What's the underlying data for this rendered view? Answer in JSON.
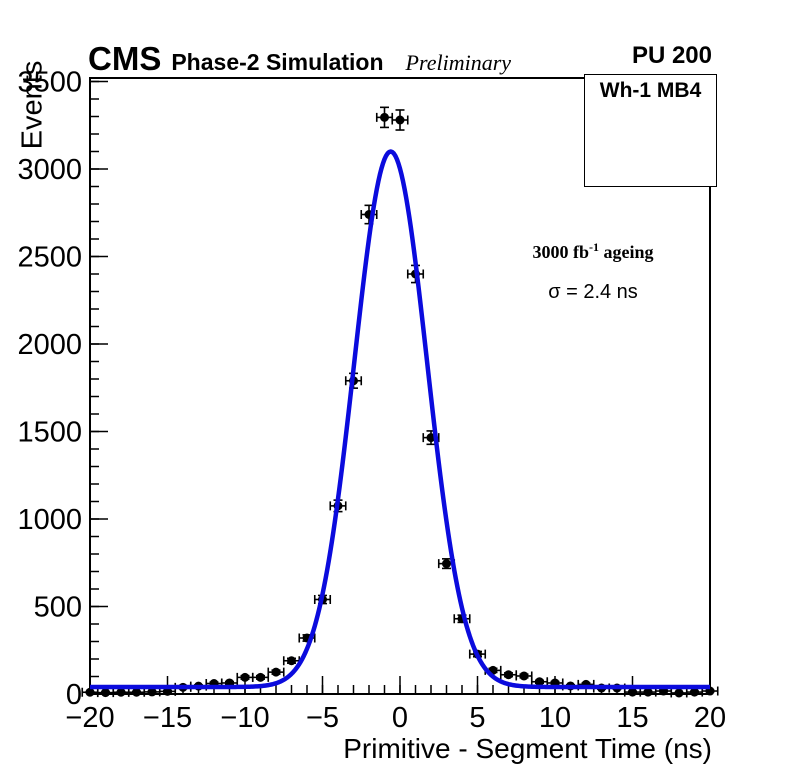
{
  "header": {
    "experiment": "CMS",
    "simulation": "Phase-2 Simulation",
    "preliminary": "Preliminary",
    "pileup": "PU 200"
  },
  "pave": {
    "label": "Wh-1 MB4"
  },
  "annotations": {
    "lumi": {
      "prefix": "3000 fb",
      "exponent": "-1",
      "suffix": " ageing"
    },
    "sigma": "σ = 2.4 ns"
  },
  "chart_data": {
    "type": "scatter",
    "title": "",
    "xlabel": "Primitive - Segment Time (ns)",
    "ylabel": "Events",
    "xlim": [
      -20,
      20
    ],
    "ylim": [
      0,
      3520
    ],
    "grid": false,
    "x": [
      -20,
      -19,
      -18,
      -17,
      -16,
      -15,
      -14,
      -13,
      -12,
      -11,
      -10,
      -9,
      -8,
      -7,
      -6,
      -5,
      -4,
      -3,
      -2,
      -1,
      0,
      1,
      2,
      3,
      4,
      5,
      6,
      7,
      8,
      9,
      10,
      11,
      12,
      13,
      14,
      15,
      16,
      17,
      18,
      19,
      20
    ],
    "y": [
      10,
      8,
      10,
      10,
      12,
      15,
      38,
      45,
      60,
      63,
      95,
      95,
      125,
      190,
      320,
      540,
      1075,
      1790,
      2740,
      3295,
      3280,
      2400,
      1465,
      745,
      430,
      228,
      135,
      110,
      103,
      70,
      63,
      46,
      55,
      34,
      34,
      11,
      11,
      17,
      6,
      11,
      17
    ],
    "x_err": 0.5,
    "y_err_model": "sqrt(y)",
    "marker": {
      "shape": "circle",
      "color": "#000000",
      "radius": 4.5
    },
    "fit": {
      "type": "gaussian_plus_constant",
      "amplitude": 3060,
      "mean": -0.6,
      "sigma": 2.35,
      "constant": 40,
      "color": "#0b0bdd",
      "width": 4.5
    },
    "xticks": {
      "major": [
        -20,
        -15,
        -10,
        -5,
        0,
        5,
        10,
        15,
        20
      ],
      "labels": [
        "−20",
        "−15",
        "−10",
        "−5",
        "0",
        "5",
        "10",
        "15",
        "20"
      ],
      "minor_step": 1
    },
    "yticks": {
      "major": [
        0,
        500,
        1000,
        1500,
        2000,
        2500,
        3000,
        3500
      ],
      "labels": [
        "0",
        "500",
        "1000",
        "1500",
        "2000",
        "2500",
        "3000",
        "3500"
      ],
      "minor_step": 100
    },
    "axis_color": "#000000"
  }
}
